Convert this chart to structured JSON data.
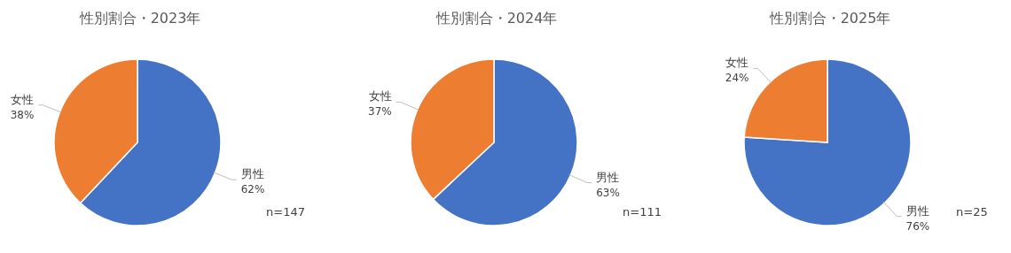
{
  "chart_data": [
    {
      "type": "pie",
      "title": "性別割合・2023年",
      "categories": [
        "男性",
        "女性"
      ],
      "values": [
        62,
        38
      ],
      "colors": [
        "#4472c4",
        "#ed7d31"
      ],
      "value_labels": [
        "62%",
        "38%"
      ],
      "annotations": [
        "n=147"
      ]
    },
    {
      "type": "pie",
      "title": "性別割合・2024年",
      "categories": [
        "男性",
        "女性"
      ],
      "values": [
        63,
        37
      ],
      "colors": [
        "#4472c4",
        "#ed7d31"
      ],
      "value_labels": [
        "63%",
        "37%"
      ],
      "annotations": [
        "n=111"
      ]
    },
    {
      "type": "pie",
      "title": "性別割合・2025年",
      "categories": [
        "男性",
        "女性"
      ],
      "values": [
        76,
        24
      ],
      "colors": [
        "#4472c4",
        "#ed7d31"
      ],
      "value_labels": [
        "76%",
        "24%"
      ],
      "annotations": [
        "n=25"
      ]
    }
  ]
}
